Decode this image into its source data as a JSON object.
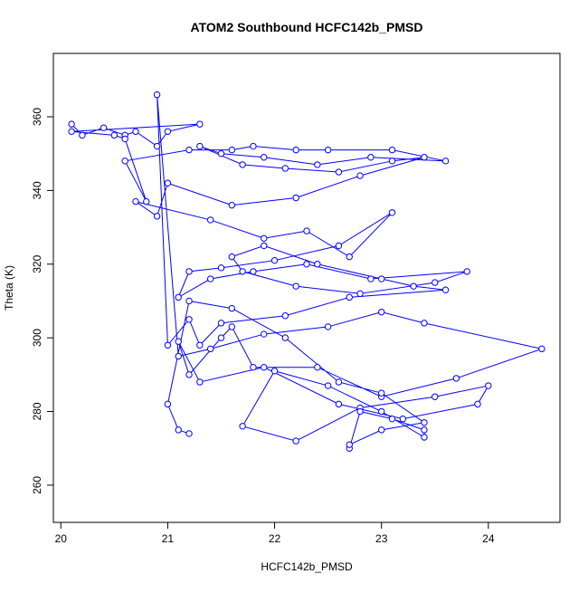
{
  "chart_data": {
    "type": "line",
    "title": "ATOM2 Southbound HCFC142b_PMSD",
    "x_label": "HCFC142b_PMSD",
    "y_label": "Theta (K)",
    "color": "#0000ff",
    "x": [
      20.1,
      20.2,
      20.4,
      20.6,
      20.7,
      20.9,
      21.0,
      21.3,
      20.1,
      20.5,
      20.6,
      20.8,
      20.6,
      21.2,
      21.6,
      21.8,
      22.2,
      22.5,
      23.1,
      23.6,
      22.9,
      22.4,
      21.9,
      21.5,
      21.3,
      21.7,
      22.1,
      22.6,
      23.1,
      23.4,
      22.8,
      22.2,
      21.6,
      21.0,
      20.9,
      20.7,
      21.4,
      21.9,
      22.3,
      22.7,
      23.1,
      22.6,
      22.0,
      21.5,
      21.2,
      21.1,
      21.4,
      21.8,
      22.3,
      22.9,
      23.8,
      23.5,
      22.8,
      22.2,
      21.7,
      21.6,
      21.9,
      22.4,
      23.0,
      23.3,
      23.6,
      22.7,
      22.1,
      21.5,
      21.3,
      21.2,
      21.0,
      20.9,
      21.1,
      21.4,
      21.9,
      22.5,
      23.0,
      23.4,
      24.5,
      23.7,
      23.0,
      22.4,
      21.8,
      21.6,
      21.5,
      21.2,
      21.1,
      21.3,
      21.9,
      22.6,
      23.2,
      23.9,
      24.0,
      23.5,
      22.8,
      22.2,
      21.7,
      22.0,
      22.5,
      23.0,
      23.4,
      23.4,
      23.1,
      22.8,
      22.7,
      22.7,
      23.0,
      23.4,
      23.0,
      22.6,
      22.1,
      21.6,
      21.2,
      21.0,
      21.1,
      21.2
    ],
    "values": [
      358,
      355,
      357,
      355,
      356,
      352,
      356,
      358,
      356,
      355,
      354,
      337,
      348,
      351,
      351,
      352,
      351,
      351,
      351,
      348,
      349,
      347,
      349,
      350,
      352,
      347,
      346,
      345,
      348,
      349,
      344,
      338,
      336,
      342,
      333,
      337,
      332,
      327,
      329,
      322,
      334,
      325,
      321,
      319,
      318,
      311,
      316,
      318,
      320,
      316,
      318,
      315,
      312,
      314,
      318,
      322,
      325,
      320,
      316,
      314,
      313,
      311,
      306,
      304,
      298,
      305,
      298,
      366,
      295,
      297,
      301,
      303,
      307,
      304,
      297,
      289,
      284,
      292,
      292,
      303,
      300,
      290,
      299,
      288,
      292,
      282,
      278,
      282,
      287,
      284,
      281,
      272,
      276,
      291,
      287,
      280,
      273,
      275,
      278,
      280,
      270,
      271,
      275,
      277,
      285,
      288,
      300,
      308,
      310,
      282,
      275,
      274
    ],
    "xlim": [
      19.93,
      24.67
    ],
    "ylim": [
      249.9,
      377.2
    ],
    "xticks": [
      20,
      21,
      22,
      23,
      24
    ],
    "yticks": [
      260,
      280,
      300,
      320,
      340,
      360
    ]
  }
}
